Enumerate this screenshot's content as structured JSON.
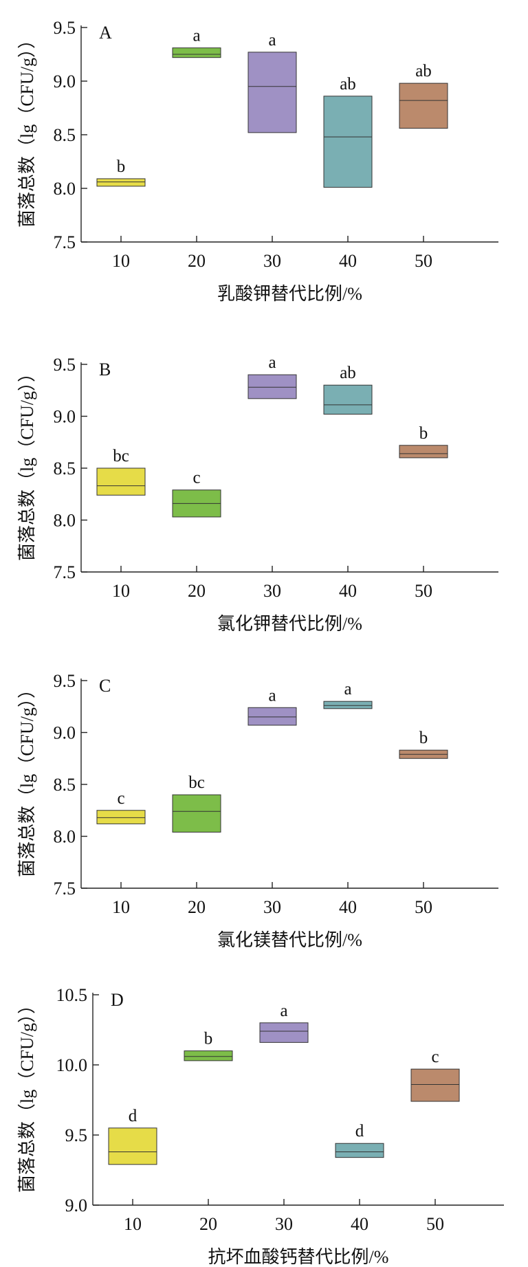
{
  "chart_data": [
    {
      "type": "box",
      "panel_label": "A",
      "xlabel": "乳酸钾替代比例/%",
      "ylabel": "菌落总数（lg（CFU/g））",
      "categories": [
        "10",
        "20",
        "30",
        "40",
        "50"
      ],
      "ylim": [
        7.5,
        9.5
      ],
      "yticks": [
        "7.5",
        "8.0",
        "8.5",
        "9.0",
        "9.5"
      ],
      "boxes": [
        {
          "x": "10",
          "low": 8.02,
          "median": 8.06,
          "high": 8.09,
          "letter": "b",
          "color": "#e6dc48"
        },
        {
          "x": "20",
          "low": 9.22,
          "median": 9.25,
          "high": 9.31,
          "letter": "a",
          "color": "#7dbd49"
        },
        {
          "x": "30",
          "low": 8.52,
          "median": 8.95,
          "high": 9.27,
          "letter": "a",
          "color": "#9f91c4"
        },
        {
          "x": "40",
          "low": 8.01,
          "median": 8.48,
          "high": 8.86,
          "letter": "ab",
          "color": "#7aafb3"
        },
        {
          "x": "50",
          "low": 8.56,
          "median": 8.82,
          "high": 8.98,
          "letter": "ab",
          "color": "#bb8a6c"
        }
      ]
    },
    {
      "type": "box",
      "panel_label": "B",
      "xlabel": "氯化钾替代比例/%",
      "ylabel": "菌落总数（lg（CFU/g））",
      "categories": [
        "10",
        "20",
        "30",
        "40",
        "50"
      ],
      "ylim": [
        7.5,
        9.5
      ],
      "yticks": [
        "7.5",
        "8.0",
        "8.5",
        "9.0",
        "9.5"
      ],
      "boxes": [
        {
          "x": "10",
          "low": 8.24,
          "median": 8.33,
          "high": 8.5,
          "letter": "bc",
          "color": "#e6dc48"
        },
        {
          "x": "20",
          "low": 8.03,
          "median": 8.16,
          "high": 8.29,
          "letter": "c",
          "color": "#7dbd49"
        },
        {
          "x": "30",
          "low": 9.17,
          "median": 9.28,
          "high": 9.4,
          "letter": "a",
          "color": "#9f91c4"
        },
        {
          "x": "40",
          "low": 9.02,
          "median": 9.11,
          "high": 9.3,
          "letter": "ab",
          "color": "#7aafb3"
        },
        {
          "x": "50",
          "low": 8.6,
          "median": 8.64,
          "high": 8.72,
          "letter": "b",
          "color": "#bb8a6c"
        }
      ]
    },
    {
      "type": "box",
      "panel_label": "C",
      "xlabel": "氯化镁替代比例/%",
      "ylabel": "菌落总数（lg（CFU/g））",
      "categories": [
        "10",
        "20",
        "30",
        "40",
        "50"
      ],
      "ylim": [
        7.5,
        9.5
      ],
      "yticks": [
        "7.5",
        "8.0",
        "8.5",
        "9.0",
        "9.5"
      ],
      "boxes": [
        {
          "x": "10",
          "low": 8.12,
          "median": 8.18,
          "high": 8.25,
          "letter": "c",
          "color": "#e6dc48"
        },
        {
          "x": "20",
          "low": 8.04,
          "median": 8.24,
          "high": 8.4,
          "letter": "bc",
          "color": "#7dbd49"
        },
        {
          "x": "30",
          "low": 9.07,
          "median": 9.15,
          "high": 9.24,
          "letter": "a",
          "color": "#9f91c4"
        },
        {
          "x": "40",
          "low": 9.23,
          "median": 9.26,
          "high": 9.3,
          "letter": "a",
          "color": "#7aafb3"
        },
        {
          "x": "50",
          "low": 8.75,
          "median": 8.79,
          "high": 8.83,
          "letter": "b",
          "color": "#bb8a6c"
        }
      ]
    },
    {
      "type": "box",
      "panel_label": "D",
      "xlabel": "抗坏血酸钙替代比例/%",
      "ylabel": "菌落总数（lg（CFU/g））",
      "categories": [
        "10",
        "20",
        "30",
        "40",
        "50"
      ],
      "ylim": [
        9.0,
        10.5
      ],
      "yticks": [
        "9.0",
        "9.5",
        "10.0",
        "10.5"
      ],
      "boxes": [
        {
          "x": "10",
          "low": 9.29,
          "median": 9.38,
          "high": 9.55,
          "letter": "d",
          "color": "#e6dc48"
        },
        {
          "x": "20",
          "low": 10.03,
          "median": 10.06,
          "high": 10.1,
          "letter": "b",
          "color": "#7dbd49"
        },
        {
          "x": "30",
          "low": 10.16,
          "median": 10.24,
          "high": 10.3,
          "letter": "a",
          "color": "#9f91c4"
        },
        {
          "x": "40",
          "low": 9.34,
          "median": 9.38,
          "high": 9.44,
          "letter": "d",
          "color": "#7aafb3"
        },
        {
          "x": "50",
          "low": 9.74,
          "median": 9.86,
          "high": 9.97,
          "letter": "c",
          "color": "#bb8a6c"
        }
      ]
    }
  ]
}
